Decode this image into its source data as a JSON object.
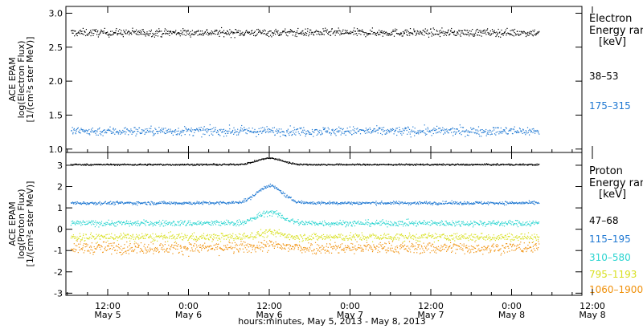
{
  "chart_data": [
    {
      "type": "scatter",
      "panel": "electron",
      "ylabel_lines": [
        "ACE EPAM",
        "log(Electron Flux)",
        "[1/(cm²s ster MeV)]"
      ],
      "ylim": [
        0.95,
        3.1
      ],
      "yticks": [
        "1.0",
        "1.5",
        "2.0",
        "2.5",
        "3.0"
      ],
      "ytick_values": [
        1.0,
        1.5,
        2.0,
        2.5,
        3.0
      ],
      "legend_title_lines": [
        "Electron",
        "Energy ran",
        "[keV]"
      ],
      "series": [
        {
          "name": "38–53",
          "color": "#000000",
          "level": 2.72,
          "spread": 0.06
        },
        {
          "name": "175–315",
          "color": "#1f78d2",
          "level": 1.27,
          "spread": 0.07
        }
      ]
    },
    {
      "type": "scatter",
      "panel": "proton",
      "ylabel_lines": [
        "ACE EPAM",
        "log(Proton Flux)",
        "[1/(cm²s ster MeV)]"
      ],
      "ylim": [
        -3.1,
        3.6
      ],
      "yticks": [
        "3",
        "2",
        "1",
        "0",
        "-1",
        "-2",
        "-3"
      ],
      "ytick_values": [
        3,
        2,
        1,
        0,
        -1,
        -2,
        -3
      ],
      "legend_title_lines": [
        "Proton",
        "Energy ran",
        "[keV]"
      ],
      "series": [
        {
          "name": "47–68",
          "color": "#000000",
          "level": 3.05,
          "spread": 0.04,
          "bump": 0.3
        },
        {
          "name": "115–195",
          "color": "#1f78d2",
          "level": 1.25,
          "spread": 0.08,
          "bump": 0.8
        },
        {
          "name": "310–580",
          "color": "#2ad4d0",
          "level": 0.3,
          "spread": 0.15,
          "bump": 0.5
        },
        {
          "name": "795–1193",
          "color": "#d8e020",
          "level": -0.35,
          "spread": 0.2,
          "bump": 0.2
        },
        {
          "name": "1060–1900",
          "color": "#f0900a",
          "level": -0.85,
          "spread": 0.3,
          "bump": 0.1
        }
      ]
    }
  ],
  "x_axis": {
    "label": "hours:minutes, May  5, 2013 - May  8, 2013",
    "ticks": [
      {
        "time": "12:00",
        "date": "May 5"
      },
      {
        "time": "0:00",
        "date": "May 6"
      },
      {
        "time": "12:00",
        "date": "May 6"
      },
      {
        "time": "0:00",
        "date": "May 7"
      },
      {
        "time": "12:00",
        "date": "May 7"
      },
      {
        "time": "0:00",
        "date": "May 8"
      },
      {
        "time": "12:00",
        "date": "May 8"
      }
    ]
  }
}
